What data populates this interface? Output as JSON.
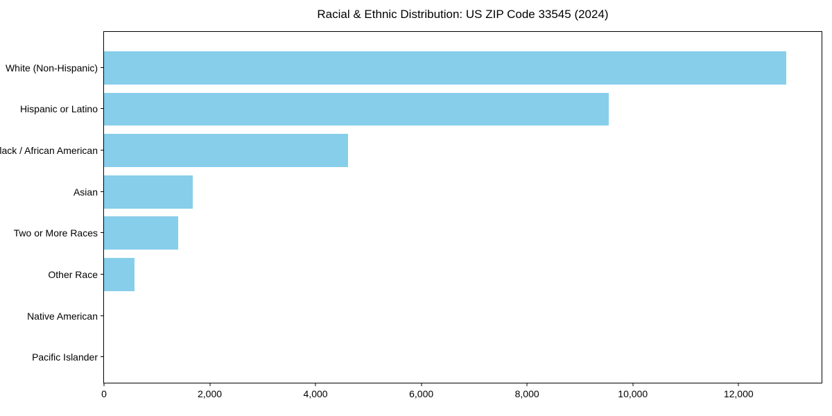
{
  "chart_data": {
    "type": "bar",
    "orientation": "horizontal",
    "title": "Racial & Ethnic Distribution: US ZIP Code 33545 (2024)",
    "categories": [
      "White (Non-Hispanic)",
      "Hispanic or Latino",
      "Black / African American",
      "Asian",
      "Two or More Races",
      "Other Race",
      "Native American",
      "Pacific Islander"
    ],
    "values": [
      12900,
      9540,
      4620,
      1675,
      1400,
      575,
      0,
      0
    ],
    "xlabel": "",
    "ylabel": "",
    "xlim": [
      0,
      13570
    ],
    "x_ticks": [
      0,
      2000,
      4000,
      6000,
      8000,
      10000,
      12000
    ],
    "x_tick_labels": [
      "0",
      "2,000",
      "4,000",
      "6,000",
      "8,000",
      "10,000",
      "12,000"
    ],
    "bar_color": "#87CEEB",
    "axis_color": "#000000",
    "background_color": "#ffffff",
    "grid": false,
    "legend": null
  }
}
